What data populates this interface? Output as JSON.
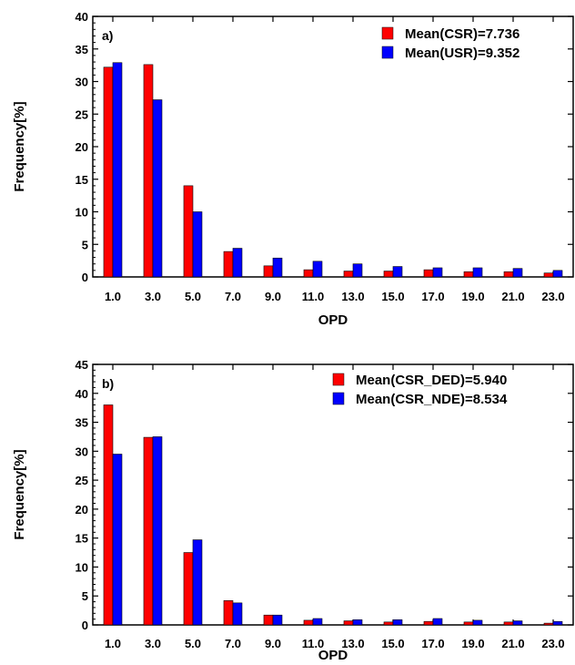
{
  "chart_data": [
    {
      "type": "bar",
      "panel_label": "a)",
      "xlabel": "OPD",
      "ylabel": "Frequency[%]",
      "categories": [
        "1.0",
        "3.0",
        "5.0",
        "7.0",
        "9.0",
        "11.0",
        "13.0",
        "15.0",
        "17.0",
        "19.0",
        "21.0",
        "23.0"
      ],
      "ylim": [
        0,
        40
      ],
      "yticks": [
        0,
        5,
        10,
        15,
        20,
        25,
        30,
        35,
        40
      ],
      "legend_position": "top-right",
      "series": [
        {
          "name": "Mean(CSR)=7.736",
          "color": "#ff0000",
          "values": [
            32.2,
            32.6,
            14.0,
            3.9,
            1.7,
            1.1,
            0.9,
            0.9,
            1.1,
            0.8,
            0.8,
            0.6
          ]
        },
        {
          "name": "Mean(USR)=9.352",
          "color": "#0000ff",
          "values": [
            32.9,
            27.2,
            10.0,
            4.4,
            2.9,
            2.4,
            2.0,
            1.6,
            1.4,
            1.4,
            1.3,
            1.0
          ]
        }
      ]
    },
    {
      "type": "bar",
      "panel_label": "b)",
      "xlabel": "OPD",
      "ylabel": "Frequency[%]",
      "categories": [
        "1.0",
        "3.0",
        "5.0",
        "7.0",
        "9.0",
        "11.0",
        "13.0",
        "15.0",
        "17.0",
        "19.0",
        "21.0",
        "23.0"
      ],
      "ylim": [
        0,
        45
      ],
      "yticks": [
        0,
        5,
        10,
        15,
        20,
        25,
        30,
        35,
        40,
        45
      ],
      "legend_position": "top-right",
      "series": [
        {
          "name": "Mean(CSR_DED)=5.940",
          "color": "#ff0000",
          "values": [
            38.0,
            32.4,
            12.5,
            4.2,
            1.7,
            0.8,
            0.7,
            0.5,
            0.6,
            0.5,
            0.5,
            0.3
          ]
        },
        {
          "name": "Mean(CSR_NDE)=8.534",
          "color": "#0000ff",
          "values": [
            29.5,
            32.5,
            14.7,
            3.8,
            1.7,
            1.1,
            0.9,
            0.9,
            1.1,
            0.8,
            0.7,
            0.6
          ]
        }
      ]
    }
  ]
}
